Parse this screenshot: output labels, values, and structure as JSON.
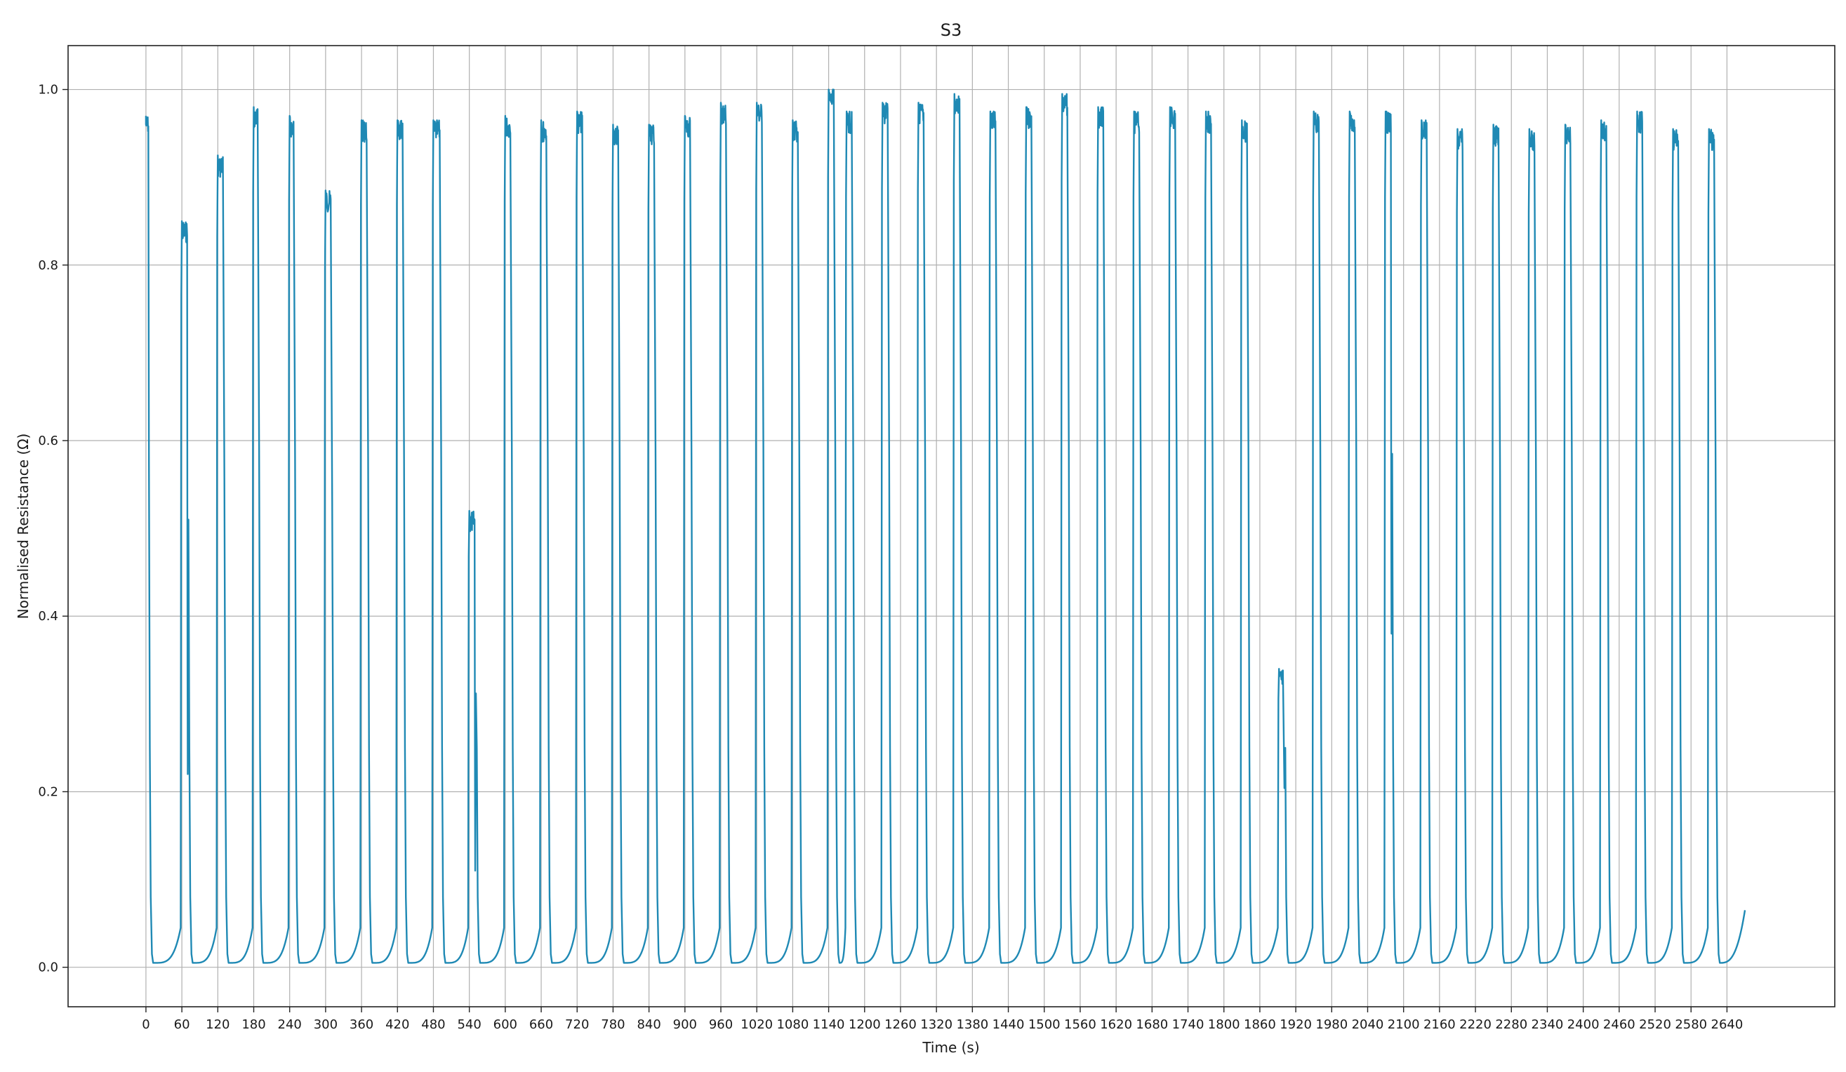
{
  "chart_data": {
    "type": "line",
    "title": "S3",
    "xlabel": "Time (s)",
    "ylabel": "Normalised Resistance (Ω)",
    "xlim": [
      -130,
      2820
    ],
    "ylim": [
      -0.045,
      1.05
    ],
    "x_ticks": [
      0,
      60,
      120,
      180,
      240,
      300,
      360,
      420,
      480,
      540,
      600,
      660,
      720,
      780,
      840,
      900,
      960,
      1020,
      1080,
      1140,
      1200,
      1260,
      1320,
      1380,
      1440,
      1500,
      1560,
      1620,
      1680,
      1740,
      1800,
      1860,
      1920,
      1980,
      2040,
      2100,
      2160,
      2220,
      2280,
      2340,
      2400,
      2460,
      2520,
      2580,
      2640
    ],
    "x_tick_labels": [
      "0",
      "60",
      "120",
      "180",
      "240",
      "300",
      "360",
      "420",
      "480",
      "540",
      "600",
      "660",
      "720",
      "780",
      "840",
      "900",
      "960",
      "1020",
      "1080",
      "1140",
      "1200",
      "1260",
      "1320",
      "1380",
      "1440",
      "1500",
      "1560",
      "1620",
      "1680",
      "1740",
      "1800",
      "1860",
      "1920",
      "1980",
      "2040",
      "2100",
      "2160",
      "2220",
      "2280",
      "2340",
      "2400",
      "2460",
      "2520",
      "2580",
      "2640"
    ],
    "y_ticks": [
      0.0,
      0.2,
      0.4,
      0.6,
      0.8,
      1.0
    ],
    "y_tick_labels": [
      "0.0",
      "0.2",
      "0.4",
      "0.6",
      "0.8",
      "1.0"
    ],
    "grid": true,
    "line_color": "#1f89b4",
    "start": {
      "x": 0,
      "y": 0.97
    },
    "end": {
      "x": 2670,
      "y": 0.065
    },
    "series": [
      {
        "name": "",
        "pulses": [
          {
            "rise": 0,
            "fall": 4,
            "peak": 0.97
          },
          {
            "rise": 58,
            "fall": 70,
            "peak": 0.85,
            "dip": 0.22
          },
          {
            "rise": 118,
            "fall": 130,
            "peak": 0.925
          },
          {
            "rise": 178,
            "fall": 188,
            "peak": 0.98
          },
          {
            "rise": 238,
            "fall": 248,
            "peak": 0.97
          },
          {
            "rise": 298,
            "fall": 310,
            "peak": 0.885
          },
          {
            "rise": 358,
            "fall": 370,
            "peak": 0.965
          },
          {
            "rise": 418,
            "fall": 430,
            "peak": 0.965
          },
          {
            "rise": 478,
            "fall": 492,
            "peak": 0.965
          },
          {
            "rise": 538,
            "fall": 550,
            "peak": 0.52,
            "dip": 0.11
          },
          {
            "rise": 598,
            "fall": 610,
            "peak": 0.97
          },
          {
            "rise": 658,
            "fall": 670,
            "peak": 0.965
          },
          {
            "rise": 718,
            "fall": 730,
            "peak": 0.975
          },
          {
            "rise": 778,
            "fall": 790,
            "peak": 0.96
          },
          {
            "rise": 838,
            "fall": 850,
            "peak": 0.96
          },
          {
            "rise": 898,
            "fall": 910,
            "peak": 0.97
          },
          {
            "rise": 958,
            "fall": 970,
            "peak": 0.985
          },
          {
            "rise": 1018,
            "fall": 1030,
            "peak": 0.985
          },
          {
            "rise": 1078,
            "fall": 1090,
            "peak": 0.965
          },
          {
            "rise": 1138,
            "fall": 1150,
            "peak": 1.0
          },
          {
            "rise": 1168,
            "fall": 1180,
            "peak": 0.975
          },
          {
            "rise": 1228,
            "fall": 1240,
            "peak": 0.985
          },
          {
            "rise": 1288,
            "fall": 1300,
            "peak": 0.985
          },
          {
            "rise": 1348,
            "fall": 1360,
            "peak": 0.995
          },
          {
            "rise": 1408,
            "fall": 1420,
            "peak": 0.975
          },
          {
            "rise": 1468,
            "fall": 1480,
            "peak": 0.98
          },
          {
            "rise": 1528,
            "fall": 1540,
            "peak": 0.995
          },
          {
            "rise": 1588,
            "fall": 1600,
            "peak": 0.98
          },
          {
            "rise": 1648,
            "fall": 1660,
            "peak": 0.975
          },
          {
            "rise": 1708,
            "fall": 1720,
            "peak": 0.98
          },
          {
            "rise": 1768,
            "fall": 1780,
            "peak": 0.975
          },
          {
            "rise": 1828,
            "fall": 1840,
            "peak": 0.965
          },
          {
            "rise": 1890,
            "fall": 1900,
            "peak": 0.34
          },
          {
            "rise": 1948,
            "fall": 1960,
            "peak": 0.975
          },
          {
            "rise": 2008,
            "fall": 2020,
            "peak": 0.975
          },
          {
            "rise": 2068,
            "fall": 2080,
            "peak": 0.975,
            "dip": 0.38
          },
          {
            "rise": 2128,
            "fall": 2140,
            "peak": 0.965
          },
          {
            "rise": 2188,
            "fall": 2200,
            "peak": 0.955
          },
          {
            "rise": 2248,
            "fall": 2260,
            "peak": 0.96
          },
          {
            "rise": 2308,
            "fall": 2320,
            "peak": 0.955
          },
          {
            "rise": 2368,
            "fall": 2380,
            "peak": 0.96
          },
          {
            "rise": 2428,
            "fall": 2440,
            "peak": 0.965
          },
          {
            "rise": 2488,
            "fall": 2500,
            "peak": 0.975
          },
          {
            "rise": 2548,
            "fall": 2560,
            "peak": 0.955
          },
          {
            "rise": 2608,
            "fall": 2620,
            "peak": 0.955
          }
        ]
      }
    ]
  }
}
